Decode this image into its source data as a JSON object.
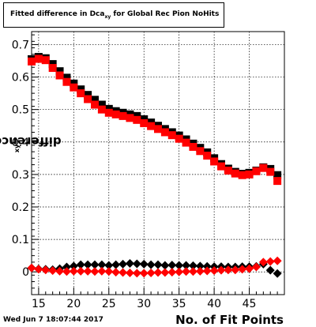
{
  "title": {
    "prefix": "Fitted difference in Dca",
    "sub": "xy",
    "suffix": " for Global Rec Pion NoHits"
  },
  "ylabel": {
    "text": "difference in Dca",
    "sub": "xy"
  },
  "xlabel": "No. of Fit Points",
  "timestamp": "Wed Jun  7 18:07:44 2017",
  "chart_data": {
    "type": "scatter",
    "xlim": [
      14,
      50
    ],
    "ylim": [
      -0.07,
      0.74
    ],
    "xticks": [
      15,
      20,
      25,
      30,
      35,
      40,
      45
    ],
    "yticks": [
      0,
      0.1,
      0.2,
      0.3,
      0.4,
      0.5,
      0.6,
      0.7
    ],
    "grid": true,
    "series": [
      {
        "marker": "square",
        "color": "#000000",
        "x": [
          14,
          15,
          16,
          17,
          18,
          19,
          20,
          21,
          22,
          23,
          24,
          25,
          26,
          27,
          28,
          29,
          30,
          31,
          32,
          33,
          34,
          35,
          36,
          37,
          38,
          39,
          40,
          41,
          42,
          43,
          44,
          45,
          46,
          47,
          48,
          49
        ],
        "y": [
          0.655,
          0.662,
          0.658,
          0.64,
          0.618,
          0.598,
          0.58,
          0.562,
          0.545,
          0.53,
          0.515,
          0.502,
          0.495,
          0.49,
          0.485,
          0.48,
          0.47,
          0.46,
          0.45,
          0.44,
          0.43,
          0.42,
          0.408,
          0.395,
          0.382,
          0.368,
          0.35,
          0.332,
          0.318,
          0.308,
          0.302,
          0.305,
          0.312,
          0.322,
          0.317,
          0.298
        ]
      },
      {
        "marker": "square",
        "color": "#ff0000",
        "x": [
          14,
          15,
          16,
          17,
          18,
          19,
          20,
          21,
          22,
          23,
          24,
          25,
          26,
          27,
          28,
          29,
          30,
          31,
          32,
          33,
          34,
          35,
          36,
          37,
          38,
          39,
          40,
          41,
          42,
          43,
          44,
          45,
          46,
          47,
          48,
          49
        ],
        "y": [
          0.648,
          0.656,
          0.652,
          0.628,
          0.605,
          0.585,
          0.568,
          0.55,
          0.532,
          0.515,
          0.5,
          0.49,
          0.485,
          0.48,
          0.474,
          0.468,
          0.458,
          0.449,
          0.44,
          0.43,
          0.421,
          0.41,
          0.398,
          0.385,
          0.372,
          0.358,
          0.34,
          0.325,
          0.312,
          0.303,
          0.298,
          0.3,
          0.31,
          0.32,
          0.308,
          0.28
        ]
      },
      {
        "marker": "diamond",
        "color": "#000000",
        "x": [
          14,
          15,
          16,
          17,
          18,
          19,
          20,
          21,
          22,
          23,
          24,
          25,
          26,
          27,
          28,
          29,
          30,
          31,
          32,
          33,
          34,
          35,
          36,
          37,
          38,
          39,
          40,
          41,
          42,
          43,
          44,
          45,
          46,
          47,
          48,
          49
        ],
        "y": [
          0.012,
          0.009,
          0.008,
          0.007,
          0.01,
          0.015,
          0.018,
          0.022,
          0.022,
          0.022,
          0.022,
          0.02,
          0.022,
          0.024,
          0.026,
          0.025,
          0.024,
          0.022,
          0.022,
          0.02,
          0.021,
          0.02,
          0.02,
          0.019,
          0.018,
          0.017,
          0.016,
          0.016,
          0.015,
          0.015,
          0.016,
          0.016,
          0.017,
          0.024,
          0.005,
          -0.005
        ]
      },
      {
        "marker": "diamond",
        "color": "#ff0000",
        "x": [
          14,
          15,
          16,
          17,
          18,
          19,
          20,
          21,
          22,
          23,
          24,
          25,
          26,
          27,
          28,
          29,
          30,
          31,
          32,
          33,
          34,
          35,
          36,
          37,
          38,
          39,
          40,
          41,
          42,
          43,
          44,
          45,
          46,
          47,
          48,
          49
        ],
        "y": [
          0.012,
          0.008,
          0.006,
          0.004,
          0.002,
          0.001,
          0.002,
          0.002,
          0.002,
          0.001,
          0.002,
          0.001,
          -0.001,
          -0.002,
          -0.003,
          -0.004,
          -0.004,
          -0.003,
          -0.002,
          -0.002,
          -0.001,
          0.0,
          0.001,
          0.001,
          0.002,
          0.003,
          0.004,
          0.005,
          0.006,
          0.006,
          0.008,
          0.01,
          0.015,
          0.03,
          0.032,
          0.034
        ]
      }
    ]
  }
}
